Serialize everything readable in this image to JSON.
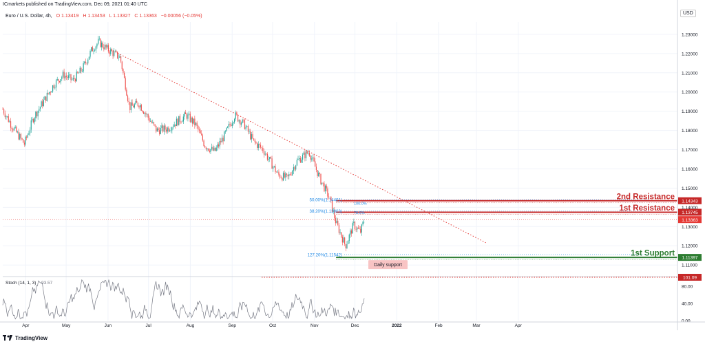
{
  "header": {
    "publisher": "ICmarkets published on TradingView.com, Dec 09, 2021 01:40 UTC",
    "symbol": "Euro / U.S. Dollar, 4h,",
    "open": "O 1.13419",
    "high": "H 1.13453",
    "low": "L 1.13327",
    "close": "C 1.13363",
    "change": "−0.00056 (−0.05%)",
    "currency": "USD"
  },
  "footer": {
    "brand": "TradingView",
    "logo_icon": "tradingview-logo-icon"
  },
  "colors": {
    "up": "#26a69a",
    "down": "#ef5350",
    "resistance": "#c62828",
    "support": "#2e7d32",
    "fib": "#1e88e5",
    "stoch": "#787b86",
    "trend": "#e53935"
  },
  "chart_data": [
    {
      "type": "candlestick",
      "title": "",
      "x_ticks": [
        "Apr",
        "May",
        "Jun",
        "Jul",
        "Aug",
        "Sep",
        "Oct",
        "Nov",
        "Dec",
        "2022",
        "Feb",
        "Mar",
        "Apr"
      ],
      "y_ticks": [
        "1.23000",
        "1.22000",
        "1.21000",
        "1.20000",
        "1.19000",
        "1.18000",
        "1.17000",
        "1.16000",
        "1.15000",
        "1.14000",
        "1.13000",
        "1.12000",
        "1.11000"
      ],
      "ylim": [
        1.1047,
        1.2364
      ],
      "grid": true,
      "price_path": [
        [
          "2021-03-15",
          1.191
        ],
        [
          "2021-03-22",
          1.182
        ],
        [
          "2021-03-31",
          1.173
        ],
        [
          "2021-04-07",
          1.187
        ],
        [
          "2021-04-15",
          1.196
        ],
        [
          "2021-04-22",
          1.204
        ],
        [
          "2021-04-29",
          1.209
        ],
        [
          "2021-05-06",
          1.206
        ],
        [
          "2021-05-13",
          1.212
        ],
        [
          "2021-05-20",
          1.222
        ],
        [
          "2021-05-25",
          1.226
        ],
        [
          "2021-06-01",
          1.222
        ],
        [
          "2021-06-10",
          1.218
        ],
        [
          "2021-06-17",
          1.192
        ],
        [
          "2021-06-24",
          1.194
        ],
        [
          "2021-07-07",
          1.18
        ],
        [
          "2021-07-15",
          1.181
        ],
        [
          "2021-07-29",
          1.188
        ],
        [
          "2021-08-05",
          1.183
        ],
        [
          "2021-08-12",
          1.172
        ],
        [
          "2021-08-19",
          1.169
        ],
        [
          "2021-08-26",
          1.177
        ],
        [
          "2021-09-03",
          1.188
        ],
        [
          "2021-09-10",
          1.183
        ],
        [
          "2021-09-17",
          1.174
        ],
        [
          "2021-09-24",
          1.17
        ],
        [
          "2021-10-05",
          1.157
        ],
        [
          "2021-10-12",
          1.155
        ],
        [
          "2021-10-19",
          1.164
        ],
        [
          "2021-10-28",
          1.169
        ],
        [
          "2021-11-05",
          1.155
        ],
        [
          "2021-11-12",
          1.145
        ],
        [
          "2021-11-17",
          1.132
        ],
        [
          "2021-11-24",
          1.12
        ],
        [
          "2021-11-30",
          1.131
        ],
        [
          "2021-12-05",
          1.127
        ],
        [
          "2021-12-08",
          1.1336
        ]
      ],
      "levels": [
        {
          "label": "2nd Resistance",
          "price": 1.14343,
          "price_label": "1.14343",
          "color": "#c62828"
        },
        {
          "label": "1st Resistance",
          "price": 1.13745,
          "price_label": "1.13745",
          "color": "#c62828"
        },
        {
          "label": "",
          "price": 1.13363,
          "price_label": "1.13363",
          "color": "#e53935"
        },
        {
          "label": "1st Support",
          "price": 1.11397,
          "price_label": "1.11397",
          "color": "#2e7d32"
        }
      ],
      "fibonacci": [
        {
          "label": "50.00%(1.14401)",
          "price": 1.14401
        },
        {
          "label": "38.20%(1.13803)",
          "price": 1.13803
        },
        {
          "label": "127.20%(1.11542)",
          "price": 1.11542
        }
      ],
      "fib_small": [
        {
          "label": "100.0%",
          "price": 1.143
        },
        {
          "label": "78.6%",
          "price": 1.1381
        }
      ],
      "trendline": [
        [
          "2021-06-01",
          1.2228
        ],
        [
          "2022-03-08",
          1.1216
        ]
      ],
      "annotations": [
        {
          "text": "Daily support"
        }
      ]
    },
    {
      "type": "line",
      "title": "Stoch (14, 1, 3)",
      "value": "93.57",
      "y_ticks": [
        "80.00",
        "40.00",
        "0.00"
      ],
      "ylim": [
        0,
        101.09
      ],
      "reference": {
        "label": "101.09",
        "value": 101.09
      }
    }
  ]
}
